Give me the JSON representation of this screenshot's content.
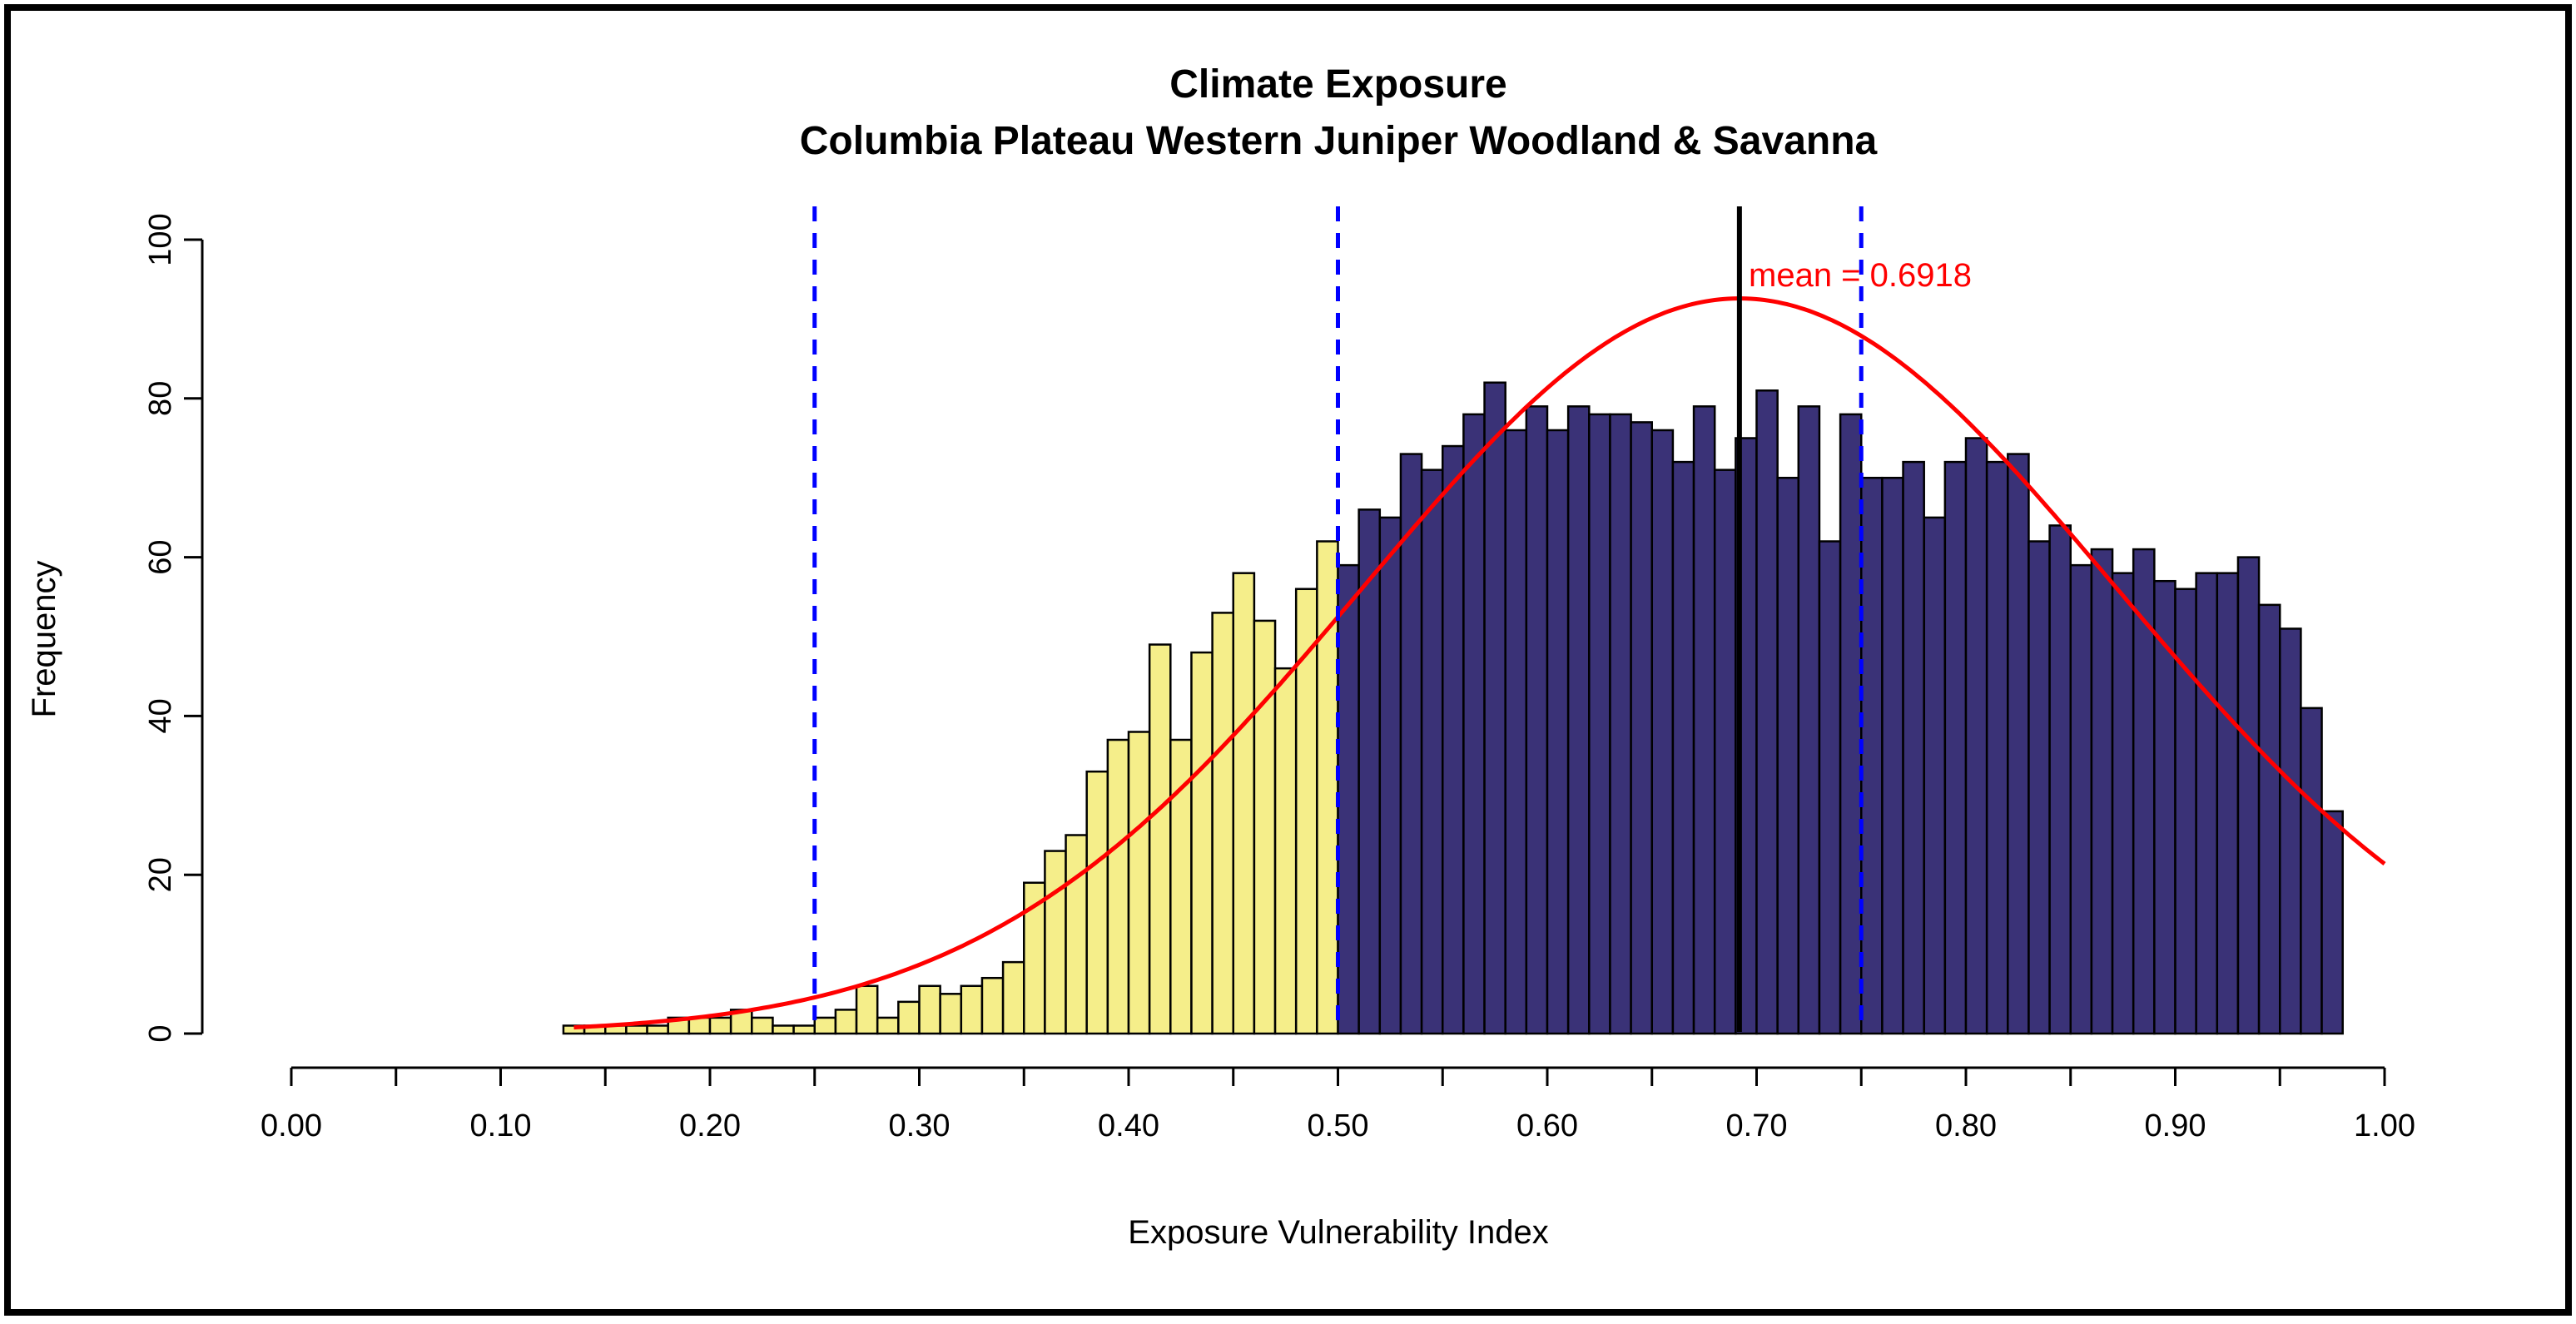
{
  "chart_data": {
    "type": "bar",
    "title": "Climate Exposure",
    "subtitle": "Columbia Plateau Western Juniper Woodland & Savanna",
    "xlabel": "Exposure Vulnerability Index",
    "ylabel": "Frequency",
    "xlim": [
      0.0,
      1.0
    ],
    "ylim": [
      0,
      100
    ],
    "x_ticks": [
      0.0,
      0.05,
      0.1,
      0.15,
      0.2,
      0.25,
      0.3,
      0.35,
      0.4,
      0.45,
      0.5,
      0.55,
      0.6,
      0.65,
      0.7,
      0.75,
      0.8,
      0.85,
      0.9,
      0.95,
      1.0
    ],
    "x_tick_labels": [
      "0.00",
      "0.10",
      "0.20",
      "0.30",
      "0.40",
      "0.50",
      "0.60",
      "0.70",
      "0.80",
      "0.90",
      "1.00"
    ],
    "x_tick_label_values": [
      0.0,
      0.1,
      0.2,
      0.3,
      0.4,
      0.5,
      0.6,
      0.7,
      0.8,
      0.9,
      1.0
    ],
    "y_ticks": [
      0,
      20,
      40,
      60,
      80,
      100
    ],
    "y_tick_labels": [
      "0",
      "20",
      "40",
      "60",
      "80",
      "100"
    ],
    "bins": {
      "start": 0.13,
      "width": 0.01,
      "values": [
        1,
        1,
        1,
        1,
        1,
        2,
        2,
        2,
        3,
        2,
        1,
        1,
        2,
        3,
        6,
        2,
        4,
        6,
        5,
        6,
        7,
        9,
        19,
        23,
        25,
        33,
        37,
        38,
        49,
        37,
        48,
        53,
        58,
        52,
        46,
        56,
        62,
        59,
        66,
        65,
        73,
        71,
        74,
        78,
        82,
        76,
        79,
        76,
        79,
        78,
        78,
        77,
        76,
        72,
        79,
        71,
        75,
        81,
        70,
        79,
        62,
        78,
        70,
        70,
        72,
        65,
        72,
        75,
        72,
        73,
        62,
        64,
        59,
        61,
        58,
        61,
        57,
        56,
        58,
        58,
        60,
        54,
        51,
        41,
        28
      ],
      "split_at": 0.5,
      "color_below": "#f5ee8a",
      "color_above": "#3a3277",
      "edge_color": "#000000"
    },
    "normal_curve": {
      "mean": 0.6918,
      "sd": 0.18,
      "peak": 92.6,
      "color": "#ff0000"
    },
    "reference_lines": [
      {
        "value": 0.25,
        "style": "dashed",
        "color": "#0000ff"
      },
      {
        "value": 0.5,
        "style": "dashed",
        "color": "#0000ff"
      },
      {
        "value": 0.75,
        "style": "dashed",
        "color": "#0000ff"
      },
      {
        "value": 0.6918,
        "style": "solid",
        "color": "#000000"
      }
    ],
    "annotations": [
      {
        "text": "mean = 0.6918",
        "x": 0.6918,
        "y": 94,
        "color": "#ff0000"
      }
    ]
  }
}
